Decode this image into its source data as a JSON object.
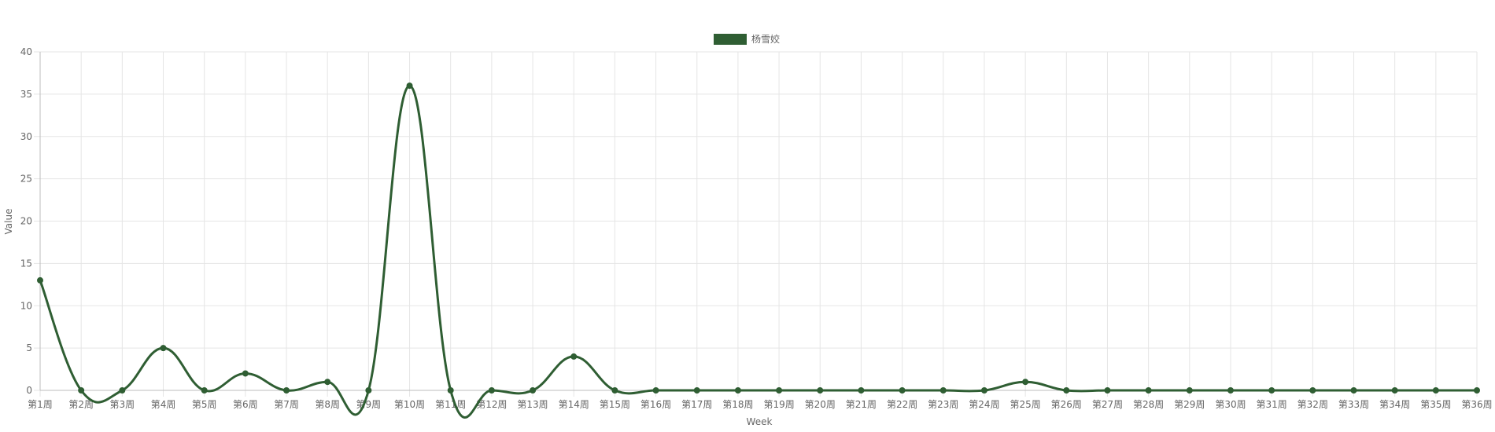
{
  "chart_data": {
    "type": "line",
    "title": "",
    "xlabel": "Week",
    "ylabel": "Value",
    "ylim": [
      0,
      40
    ],
    "y_ticks": [
      0,
      5,
      10,
      15,
      20,
      25,
      30,
      35,
      40
    ],
    "grid": true,
    "legend_position": "top-center",
    "categories": [
      "第1周",
      "第2周",
      "第3周",
      "第4周",
      "第5周",
      "第6周",
      "第7周",
      "第8周",
      "第9周",
      "第10周",
      "第11周",
      "第12周",
      "第13周",
      "第14周",
      "第15周",
      "第16周",
      "第17周",
      "第18周",
      "第19周",
      "第20周",
      "第21周",
      "第22周",
      "第23周",
      "第24周",
      "第25周",
      "第26周",
      "第27周",
      "第28周",
      "第29周",
      "第30周",
      "第31周",
      "第32周",
      "第33周",
      "第34周",
      "第35周",
      "第36周"
    ],
    "series": [
      {
        "name": "杨雪姣",
        "color": "#2f5e33",
        "values": [
          13,
          0,
          0,
          5,
          0,
          2,
          0,
          1,
          0,
          36,
          0,
          0,
          0,
          4,
          0,
          0,
          0,
          0,
          0,
          0,
          0,
          0,
          0,
          0,
          1,
          0,
          0,
          0,
          0,
          0,
          0,
          0,
          0,
          0,
          0,
          0
        ]
      }
    ]
  }
}
